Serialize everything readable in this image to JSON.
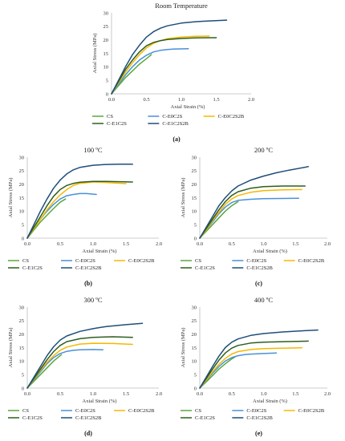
{
  "colors": {
    "CS": "#5aa83c",
    "C-E0C2S": "#4a90d9",
    "C-E0C2S2B": "#f5b800",
    "C-E1C2S": "#2e5e1e",
    "C-E1C2S2B": "#1f4e79"
  },
  "chart_data": [
    {
      "type": "line",
      "panel_label": "(a)",
      "title": "Room Temperature",
      "xlabel": "Axial Strain (%)",
      "ylabel": "Axial Stress (MPa)",
      "xlim": [
        0,
        2.0
      ],
      "ylim": [
        0,
        30
      ],
      "xticks": [
        "0.0",
        "0.5",
        "1.0",
        "1.5",
        "2.0"
      ],
      "yticks": [
        "0",
        "5",
        "10",
        "15",
        "20",
        "25",
        "30"
      ],
      "grid": false,
      "legend": [
        "CS",
        "C-E0C2S",
        "C-E0C2S2B",
        "C-E1C2S",
        "C-E1C2S2B"
      ],
      "series": [
        {
          "name": "CS",
          "x": [
            0,
            0.1,
            0.2,
            0.3,
            0.4,
            0.5,
            0.57
          ],
          "y": [
            0,
            3,
            6,
            8.5,
            11,
            13,
            14.5
          ]
        },
        {
          "name": "C-E0C2S",
          "x": [
            0,
            0.1,
            0.2,
            0.3,
            0.4,
            0.5,
            0.6,
            0.7,
            0.8,
            0.9,
            1.1
          ],
          "y": [
            0,
            3.5,
            7,
            10,
            12.5,
            14.3,
            15.5,
            16.1,
            16.4,
            16.6,
            16.7
          ]
        },
        {
          "name": "C-E0C2S2B",
          "x": [
            0,
            0.1,
            0.2,
            0.3,
            0.4,
            0.5,
            0.6,
            0.7,
            0.8,
            1.0,
            1.2,
            1.4
          ],
          "y": [
            0,
            4,
            8,
            11.5,
            14.5,
            17,
            18.7,
            19.7,
            20.4,
            21,
            21.3,
            21.4
          ]
        },
        {
          "name": "C-E1C2S",
          "x": [
            0,
            0.1,
            0.2,
            0.3,
            0.4,
            0.5,
            0.6,
            0.7,
            0.8,
            1.0,
            1.2,
            1.5
          ],
          "y": [
            0,
            4.5,
            9,
            12.5,
            15.5,
            17.8,
            19,
            19.7,
            20.1,
            20.5,
            20.7,
            20.8
          ]
        },
        {
          "name": "C-E1C2S2B",
          "x": [
            0,
            0.1,
            0.2,
            0.3,
            0.4,
            0.5,
            0.6,
            0.7,
            0.8,
            1.0,
            1.2,
            1.4,
            1.65
          ],
          "y": [
            0,
            5,
            10,
            14.5,
            18,
            21,
            23,
            24.3,
            25.2,
            26.2,
            26.7,
            27,
            27.3
          ]
        }
      ]
    },
    {
      "type": "line",
      "panel_label": "(b)",
      "title": "100 ºC",
      "xlabel": "Axial Strain (%)",
      "ylabel": "Axial Stress (MPa)",
      "xlim": [
        0,
        2.0
      ],
      "ylim": [
        0,
        30
      ],
      "xticks": [
        "0.0",
        "0.5",
        "1.0",
        "1.5",
        "2.0"
      ],
      "yticks": [
        "0",
        "5",
        "10",
        "15",
        "20",
        "25",
        "30"
      ],
      "grid": false,
      "legend": [
        "CS",
        "C-E0C2S",
        "C-E0C2S2B",
        "C-E1C2S",
        "C-E1C2S2B"
      ],
      "series": [
        {
          "name": "CS",
          "x": [
            0,
            0.1,
            0.2,
            0.3,
            0.4,
            0.5,
            0.58
          ],
          "y": [
            0,
            3,
            6,
            8.5,
            11,
            13.3,
            14.5
          ]
        },
        {
          "name": "C-E0C2S",
          "x": [
            0,
            0.1,
            0.2,
            0.3,
            0.4,
            0.5,
            0.6,
            0.7,
            0.8,
            0.9,
            1.05
          ],
          "y": [
            0,
            3.5,
            7,
            10,
            12.5,
            14.5,
            15.7,
            16.2,
            16.5,
            16.5,
            16.2
          ]
        },
        {
          "name": "C-E0C2S2B",
          "x": [
            0,
            0.1,
            0.2,
            0.3,
            0.4,
            0.5,
            0.6,
            0.7,
            0.8,
            1.0,
            1.2,
            1.5
          ],
          "y": [
            0,
            3.5,
            7,
            10.5,
            13.5,
            16,
            18,
            19.5,
            20.3,
            20.8,
            20.6,
            20.2
          ]
        },
        {
          "name": "C-E1C2S",
          "x": [
            0,
            0.1,
            0.2,
            0.3,
            0.4,
            0.5,
            0.6,
            0.7,
            0.8,
            1.0,
            1.2,
            1.6
          ],
          "y": [
            0,
            4,
            8,
            12,
            15.5,
            18,
            19.5,
            20.3,
            20.7,
            21,
            21,
            20.8
          ]
        },
        {
          "name": "C-E1C2S2B",
          "x": [
            0,
            0.1,
            0.2,
            0.3,
            0.4,
            0.5,
            0.6,
            0.7,
            0.8,
            1.0,
            1.2,
            1.4,
            1.6
          ],
          "y": [
            0,
            5,
            10,
            14.5,
            18.5,
            21.5,
            23.8,
            25.3,
            26.2,
            27,
            27.3,
            27.4,
            27.4
          ]
        }
      ]
    },
    {
      "type": "line",
      "panel_label": "(c)",
      "title": "200 ºC",
      "xlabel": "Axial Strain (%)",
      "ylabel": "Axial Stress (MPa)",
      "xlim": [
        0,
        2.0
      ],
      "ylim": [
        0,
        30
      ],
      "xticks": [
        "0.0",
        "0.5",
        "1.0",
        "1.5",
        "2.0"
      ],
      "yticks": [
        "0",
        "5",
        "10",
        "15",
        "20",
        "25",
        "30"
      ],
      "grid": false,
      "legend": [
        "CS",
        "C-E0C2S",
        "C-E0C2S2B",
        "C-E1C2S",
        "C-E1C2S2B"
      ],
      "series": [
        {
          "name": "CS",
          "x": [
            0,
            0.1,
            0.2,
            0.3,
            0.4,
            0.5,
            0.6
          ],
          "y": [
            0,
            2.5,
            5,
            7.5,
            10,
            12,
            13.5
          ]
        },
        {
          "name": "C-E0C2S",
          "x": [
            0,
            0.1,
            0.2,
            0.3,
            0.4,
            0.5,
            0.6,
            0.8,
            1.0,
            1.3,
            1.55
          ],
          "y": [
            0,
            3,
            6,
            9,
            11.5,
            13.2,
            14,
            14.4,
            14.6,
            14.7,
            14.8
          ]
        },
        {
          "name": "C-E0C2S2B",
          "x": [
            0,
            0.1,
            0.2,
            0.3,
            0.4,
            0.5,
            0.6,
            0.8,
            1.0,
            1.3,
            1.6
          ],
          "y": [
            0,
            3,
            6.5,
            9.5,
            12.5,
            14.5,
            15.8,
            17,
            17.6,
            17.9,
            18
          ]
        },
        {
          "name": "C-E1C2S",
          "x": [
            0,
            0.1,
            0.2,
            0.3,
            0.4,
            0.5,
            0.6,
            0.8,
            1.0,
            1.3,
            1.65
          ],
          "y": [
            0,
            3.5,
            7,
            10.5,
            13.5,
            15.8,
            17.2,
            18.5,
            19.1,
            19.3,
            19.3
          ]
        },
        {
          "name": "C-E1C2S2B",
          "x": [
            0,
            0.1,
            0.2,
            0.3,
            0.4,
            0.5,
            0.6,
            0.8,
            1.0,
            1.2,
            1.4,
            1.7
          ],
          "y": [
            0,
            4,
            8,
            12,
            15,
            17.5,
            19.3,
            21.5,
            23,
            24.2,
            25.2,
            26.5
          ]
        }
      ]
    },
    {
      "type": "line",
      "panel_label": "(d)",
      "title": "300 ºC",
      "xlabel": "Axial Strain (%)",
      "ylabel": "Axial Stress (MPa)",
      "xlim": [
        0,
        2.0
      ],
      "ylim": [
        0,
        30
      ],
      "xticks": [
        "0.0",
        "0.5",
        "1.0",
        "1.5",
        "2.0"
      ],
      "yticks": [
        "0",
        "5",
        "10",
        "15",
        "20",
        "25",
        "30"
      ],
      "grid": false,
      "legend": [
        "CS",
        "C-E0C2S",
        "C-E0C2S2B",
        "C-E1C2S",
        "C-E1C2S2B"
      ],
      "series": [
        {
          "name": "CS",
          "x": [
            0,
            0.1,
            0.2,
            0.3,
            0.4,
            0.5,
            0.52
          ],
          "y": [
            0,
            2.5,
            5,
            7.5,
            10,
            12,
            12.4
          ]
        },
        {
          "name": "C-E0C2S",
          "x": [
            0,
            0.1,
            0.2,
            0.3,
            0.4,
            0.5,
            0.6,
            0.7,
            0.8,
            1.0,
            1.15
          ],
          "y": [
            0,
            3,
            6,
            9,
            11.3,
            12.8,
            13.6,
            14,
            14.2,
            14.3,
            14.2
          ]
        },
        {
          "name": "C-E0C2S2B",
          "x": [
            0,
            0.1,
            0.2,
            0.3,
            0.4,
            0.5,
            0.6,
            0.8,
            1.0,
            1.3,
            1.6
          ],
          "y": [
            0,
            3.2,
            6.5,
            9.5,
            12,
            14,
            15.2,
            16.3,
            16.6,
            16.5,
            16.2
          ]
        },
        {
          "name": "C-E1C2S",
          "x": [
            0,
            0.1,
            0.2,
            0.3,
            0.4,
            0.5,
            0.6,
            0.8,
            1.0,
            1.3,
            1.6
          ],
          "y": [
            0,
            3.5,
            7,
            10.5,
            13.5,
            15.8,
            17.2,
            18.3,
            18.8,
            19,
            18.8
          ]
        },
        {
          "name": "C-E1C2S2B",
          "x": [
            0,
            0.1,
            0.2,
            0.3,
            0.4,
            0.5,
            0.6,
            0.8,
            1.0,
            1.2,
            1.5,
            1.75
          ],
          "y": [
            0,
            4,
            8,
            12,
            15.3,
            17.8,
            19.3,
            21,
            22,
            22.8,
            23.5,
            24
          ]
        }
      ]
    },
    {
      "type": "line",
      "panel_label": "(e)",
      "title": "400 ºC",
      "xlabel": "Axial Strain (%)",
      "ylabel": "Axial Stress (MPa)",
      "xlim": [
        0,
        2.0
      ],
      "ylim": [
        0,
        30
      ],
      "xticks": [
        "0.0",
        "0.5",
        "1.0",
        "1.5",
        "2.0"
      ],
      "yticks": [
        "0",
        "5",
        "10",
        "15",
        "20",
        "25",
        "30"
      ],
      "grid": false,
      "legend": [
        "CS",
        "C-E0C2S",
        "C-E0C2S2B",
        "C-E1C2S",
        "C-E1C2S2B"
      ],
      "series": [
        {
          "name": "CS",
          "x": [
            0,
            0.1,
            0.2,
            0.3,
            0.4,
            0.5,
            0.55
          ],
          "y": [
            0,
            2.3,
            4.6,
            7,
            9,
            10.8,
            11.5
          ]
        },
        {
          "name": "C-E0C2S",
          "x": [
            0,
            0.1,
            0.2,
            0.3,
            0.4,
            0.5,
            0.6,
            0.7,
            0.8,
            1.0,
            1.2
          ],
          "y": [
            0,
            2.8,
            5.5,
            8,
            10,
            11.3,
            12,
            12.4,
            12.6,
            12.8,
            13
          ]
        },
        {
          "name": "C-E0C2S2B",
          "x": [
            0,
            0.1,
            0.2,
            0.3,
            0.4,
            0.5,
            0.6,
            0.8,
            1.0,
            1.3,
            1.6
          ],
          "y": [
            0,
            3,
            6,
            8.8,
            11,
            12.6,
            13.5,
            14.3,
            14.6,
            14.8,
            14.9
          ]
        },
        {
          "name": "C-E1C2S",
          "x": [
            0,
            0.1,
            0.2,
            0.3,
            0.4,
            0.5,
            0.6,
            0.8,
            1.0,
            1.3,
            1.7
          ],
          "y": [
            0,
            3.5,
            7,
            10.3,
            13,
            14.8,
            15.8,
            16.7,
            17,
            17.2,
            17.4
          ]
        },
        {
          "name": "C-E1C2S2B",
          "x": [
            0,
            0.1,
            0.2,
            0.3,
            0.4,
            0.5,
            0.6,
            0.8,
            1.0,
            1.3,
            1.6,
            1.85
          ],
          "y": [
            0,
            4,
            8,
            11.8,
            15,
            17,
            18.2,
            19.5,
            20.2,
            20.8,
            21.2,
            21.5
          ]
        }
      ]
    }
  ]
}
